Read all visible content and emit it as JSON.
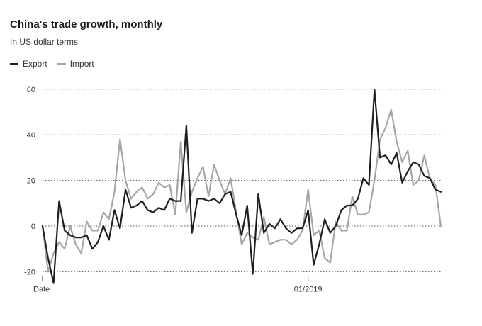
{
  "colors": {
    "export": "#1f1f1f",
    "import": "#a6a6a6",
    "grid": "#555555"
  },
  "chart_data": {
    "type": "line",
    "title": "China's trade growth, monthly",
    "subtitle": "In US dollar terms",
    "xlabel": "Date",
    "ylabel": "",
    "ylim": [
      -25,
      62
    ],
    "yticks": [
      -20,
      0,
      20,
      40,
      60
    ],
    "xtick_labels": [
      {
        "index": 0,
        "label": "Date"
      },
      {
        "index": 48,
        "label": "01/2019"
      }
    ],
    "grid": true,
    "legend": "top-left",
    "series": [
      {
        "name": "Export",
        "values": [
          0,
          -14,
          -25,
          11,
          -2,
          -4,
          -5,
          -5,
          -4,
          -10,
          -7,
          0,
          -6,
          7,
          -1,
          16,
          8,
          9,
          11,
          7,
          6,
          8,
          7,
          12,
          11,
          11,
          44,
          -3,
          12,
          12,
          11,
          12,
          10,
          14,
          15,
          5,
          -4,
          9,
          -21,
          14,
          -3,
          1,
          -1,
          3,
          -1,
          -3,
          -1,
          -1,
          7,
          -17,
          -8,
          3,
          -3,
          0,
          7,
          9,
          9,
          12,
          21,
          18,
          60,
          30,
          31,
          27,
          32,
          19,
          24,
          28,
          27,
          22,
          21,
          16,
          15
        ]
      },
      {
        "name": "Import",
        "values": [
          0,
          -20,
          -12,
          -7,
          -10,
          0,
          -8,
          -12,
          2,
          -2,
          -2,
          6,
          3,
          15,
          38,
          20,
          12,
          15,
          17,
          12,
          14,
          19,
          17,
          18,
          5,
          37,
          6,
          15,
          21,
          26,
          13,
          27,
          20,
          14,
          21,
          6,
          -8,
          -3,
          -5,
          -6,
          4,
          -8,
          -7,
          -6,
          -6,
          -8,
          -6,
          -2,
          16,
          -4,
          -2,
          -14,
          -16,
          2,
          -2,
          -2,
          13,
          5,
          5,
          6,
          20,
          38,
          43,
          51,
          37,
          28,
          33,
          18,
          20,
          31,
          21,
          18,
          0
        ]
      }
    ]
  }
}
